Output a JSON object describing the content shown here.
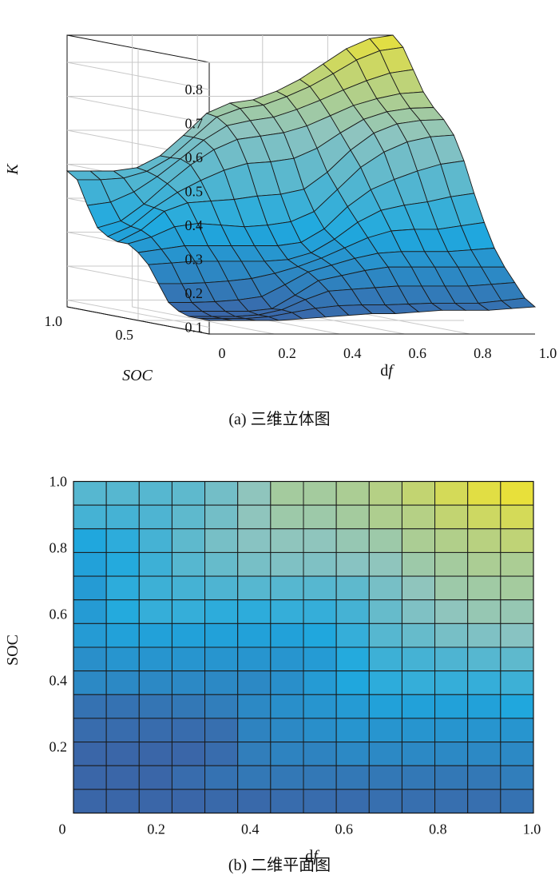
{
  "figure_a": {
    "caption": "(a) 三维立体图",
    "zlabel": "K",
    "xlabel": "df",
    "ylabel": "SOC"
  },
  "figure_b": {
    "caption": "(b) 二维平面图",
    "xlabel": "df",
    "ylabel": "SOC"
  },
  "chart_data": [
    {
      "type": "surface",
      "title": "",
      "xlabel": "df",
      "ylabel": "SOC",
      "zlabel": "K",
      "x_ticks": [
        "0",
        "0.2",
        "0.4",
        "0.6",
        "0.8",
        "1.0"
      ],
      "y_ticks": [
        "1.0",
        "0.5"
      ],
      "z_ticks": [
        "0.1",
        "0.2",
        "0.3",
        "0.4",
        "0.5",
        "0.6",
        "0.7",
        "0.8"
      ],
      "xlim": [
        0,
        1
      ],
      "ylim": [
        0,
        1
      ],
      "zlim": [
        0.08,
        0.88
      ],
      "grid": true,
      "colormap": [
        "#3f5a9e",
        "#1fa9df",
        "#8dc4c0",
        "#e8e03a"
      ]
    },
    {
      "type": "heatmap",
      "title": "",
      "xlabel": "df",
      "ylabel": "SOC",
      "x_ticks": [
        "0",
        "0.2",
        "0.4",
        "0.6",
        "0.8",
        "1.0"
      ],
      "y_ticks": [
        "0.2",
        "0.4",
        "0.6",
        "0.8",
        "1.0"
      ],
      "xlim": [
        0,
        1
      ],
      "ylim": [
        0,
        1
      ],
      "zlim": [
        0.08,
        0.88
      ],
      "colormap": [
        "#3f5a9e",
        "#1fa9df",
        "#8dc4c0",
        "#e8e03a"
      ],
      "df": [
        0.0,
        0.071,
        0.143,
        0.214,
        0.286,
        0.357,
        0.429,
        0.5,
        0.571,
        0.643,
        0.714,
        0.786,
        0.857,
        0.929,
        1.0
      ],
      "soc": [
        0.0,
        0.071,
        0.143,
        0.214,
        0.286,
        0.357,
        0.429,
        0.5,
        0.571,
        0.643,
        0.714,
        0.786,
        0.857,
        0.929,
        1.0
      ],
      "k_rows_top_to_bottom": [
        [
          0.48,
          0.48,
          0.48,
          0.5,
          0.55,
          0.62,
          0.68,
          0.68,
          0.7,
          0.73,
          0.77,
          0.82,
          0.86,
          0.88
        ],
        [
          0.44,
          0.44,
          0.46,
          0.5,
          0.55,
          0.62,
          0.66,
          0.66,
          0.68,
          0.71,
          0.73,
          0.77,
          0.8,
          0.82
        ],
        [
          0.34,
          0.38,
          0.44,
          0.5,
          0.56,
          0.6,
          0.62,
          0.62,
          0.64,
          0.66,
          0.7,
          0.72,
          0.74,
          0.76
        ],
        [
          0.32,
          0.36,
          0.42,
          0.48,
          0.52,
          0.56,
          0.58,
          0.58,
          0.6,
          0.62,
          0.66,
          0.68,
          0.7,
          0.7
        ],
        [
          0.3,
          0.38,
          0.42,
          0.44,
          0.46,
          0.48,
          0.48,
          0.48,
          0.5,
          0.56,
          0.62,
          0.66,
          0.67,
          0.68
        ],
        [
          0.3,
          0.36,
          0.4,
          0.4,
          0.38,
          0.38,
          0.4,
          0.4,
          0.44,
          0.52,
          0.58,
          0.62,
          0.64,
          0.64
        ],
        [
          0.3,
          0.32,
          0.32,
          0.32,
          0.32,
          0.32,
          0.32,
          0.34,
          0.4,
          0.48,
          0.52,
          0.56,
          0.58,
          0.6
        ],
        [
          0.26,
          0.28,
          0.28,
          0.28,
          0.28,
          0.28,
          0.28,
          0.3,
          0.36,
          0.42,
          0.44,
          0.46,
          0.48,
          0.5
        ],
        [
          0.24,
          0.24,
          0.24,
          0.24,
          0.24,
          0.24,
          0.26,
          0.3,
          0.34,
          0.38,
          0.4,
          0.4,
          0.4,
          0.42
        ],
        [
          0.16,
          0.16,
          0.17,
          0.18,
          0.2,
          0.24,
          0.26,
          0.28,
          0.3,
          0.32,
          0.32,
          0.32,
          0.32,
          0.34
        ],
        [
          0.14,
          0.14,
          0.14,
          0.14,
          0.15,
          0.22,
          0.24,
          0.26,
          0.28,
          0.28,
          0.28,
          0.28,
          0.28,
          0.28
        ],
        [
          0.12,
          0.12,
          0.12,
          0.12,
          0.14,
          0.2,
          0.22,
          0.22,
          0.24,
          0.24,
          0.24,
          0.24,
          0.24,
          0.24
        ],
        [
          0.12,
          0.12,
          0.12,
          0.14,
          0.16,
          0.18,
          0.18,
          0.18,
          0.18,
          0.18,
          0.18,
          0.18,
          0.18,
          0.2
        ],
        [
          0.12,
          0.12,
          0.12,
          0.12,
          0.13,
          0.13,
          0.14,
          0.14,
          0.14,
          0.15,
          0.15,
          0.15,
          0.15,
          0.16
        ]
      ]
    }
  ]
}
